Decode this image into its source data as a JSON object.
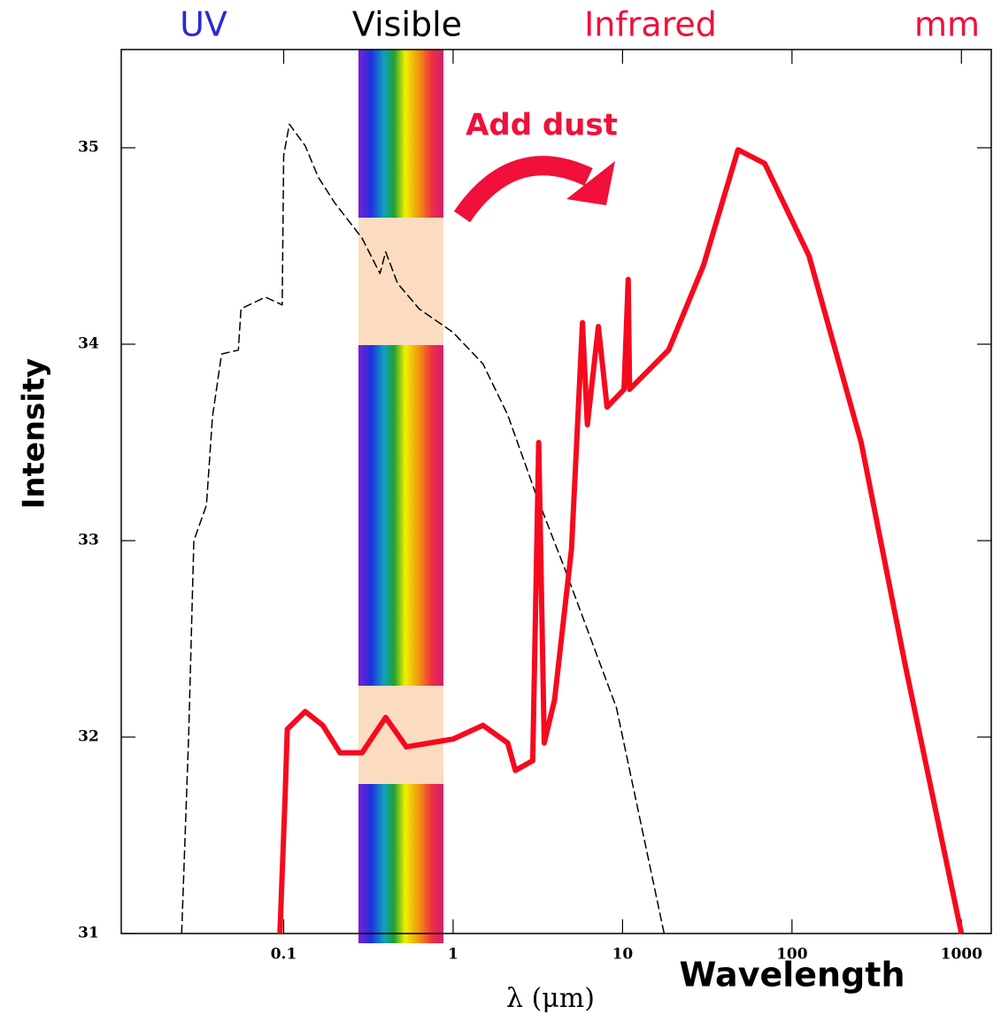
{
  "chart_data": {
    "type": "line",
    "band_labels": [
      {
        "text": "UV",
        "color": "#2b2bcf"
      },
      {
        "text": "Visible",
        "color": "#000000"
      },
      {
        "text": "Infrared",
        "color": "#f0103a"
      },
      {
        "text": "mm",
        "color": "#f0103a"
      }
    ],
    "annotation": "Add dust",
    "ylabel": "Intensity",
    "xlabel": "λ (μm)",
    "xlabel2": "Wavelength",
    "xscale": "log",
    "xlim": [
      0.011,
      1500
    ],
    "ylim": [
      31,
      35.5
    ],
    "xticks": [
      0.1,
      1,
      10,
      100,
      1000
    ],
    "yticks": [
      31,
      32,
      33,
      34,
      35
    ],
    "series": [
      {
        "color": "#000000",
        "dashed": true,
        "width": 1.5,
        "x": [
          0.025,
          0.0275,
          0.0295,
          0.035,
          0.038,
          0.043,
          0.054,
          0.056,
          0.078,
          0.098,
          0.1,
          0.108,
          0.134,
          0.16,
          0.2,
          0.29,
          0.37,
          0.4,
          0.47,
          0.63,
          1,
          1.5,
          2.1,
          3.1,
          4.5,
          9.2,
          17.6
        ],
        "values": [
          31,
          32.01,
          33.0,
          33.18,
          33.63,
          33.95,
          33.97,
          34.18,
          34.24,
          34.2,
          34.96,
          35.12,
          35.01,
          34.85,
          34.72,
          34.54,
          34.36,
          34.47,
          34.31,
          34.18,
          34.06,
          33.9,
          33.64,
          33.23,
          32.87,
          32.15,
          31
        ]
      },
      {
        "color": "#f50a1e",
        "dashed": false,
        "width": 6,
        "x": [
          0.095,
          0.102,
          0.105,
          0.134,
          0.17,
          0.215,
          0.29,
          0.4,
          0.53,
          1,
          1.5,
          2.1,
          2.33,
          2.95,
          3.2,
          3.45,
          3.97,
          5.0,
          5.8,
          6.2,
          7.2,
          8.1,
          10.2,
          10.8,
          11,
          18.7,
          30,
          48,
          69,
          126,
          256,
          465,
          1000
        ],
        "values": [
          31,
          31.7,
          32.04,
          32.13,
          32.06,
          31.92,
          31.92,
          32.1,
          31.95,
          31.99,
          32.06,
          31.97,
          31.83,
          31.88,
          33.5,
          31.97,
          32.19,
          32.96,
          34.11,
          33.59,
          34.09,
          33.68,
          33.77,
          34.33,
          33.77,
          33.97,
          34.4,
          34.99,
          34.92,
          34.45,
          33.5,
          32.37,
          31
        ]
      }
    ]
  }
}
